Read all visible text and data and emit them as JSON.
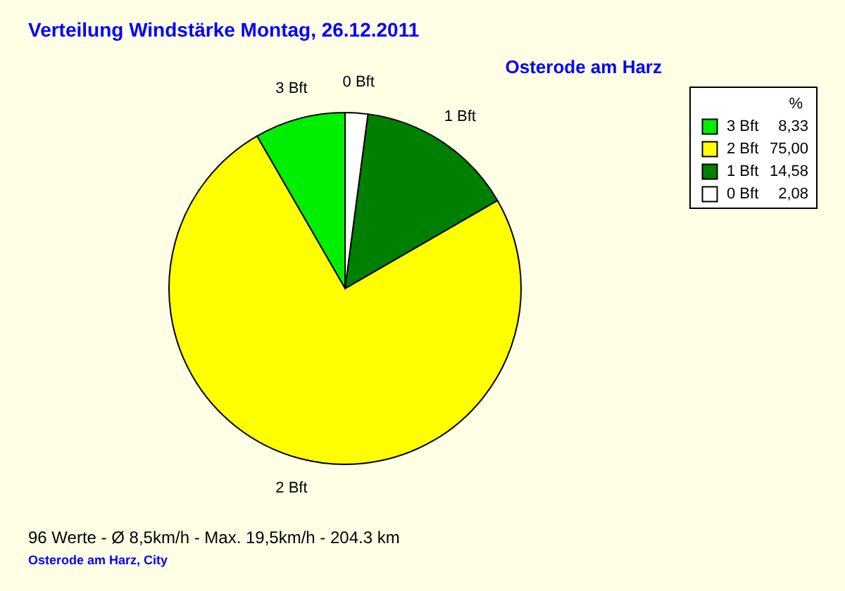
{
  "chart_data": {
    "type": "pie",
    "title": "Verteilung Windstärke  Montag, 26.12.2011",
    "subtitle": "Osterode am Harz",
    "categories": [
      "3 Bft",
      "2 Bft",
      "1 Bft",
      "0 Bft"
    ],
    "values": [
      8.33,
      75.0,
      14.58,
      2.08
    ],
    "value_labels": [
      "8,33",
      "75,00",
      "14,58",
      "2,08"
    ],
    "colors": [
      "#00ee00",
      "#ffff00",
      "#008000",
      "#ffffff"
    ],
    "legend_title": "%",
    "legend": "top right",
    "annotations": [
      "96 Werte   -   Ø 8,5km/h  -  Max. 19,5km/h   -   204.3 km",
      "Osterode am Harz, City"
    ]
  }
}
